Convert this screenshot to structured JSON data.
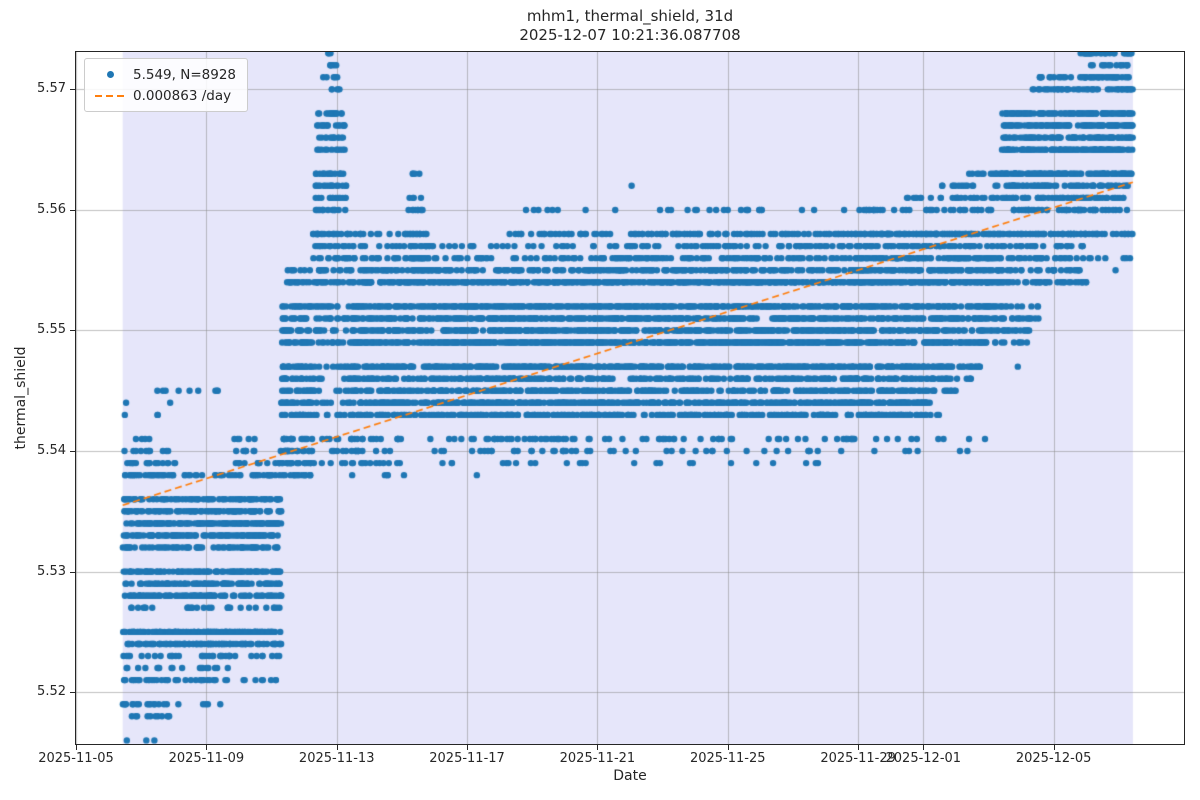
{
  "figure": {
    "title_line1": "mhm1, thermal_shield, 31d",
    "title_line2": "2025-12-07 10:21:36.087708"
  },
  "axes": {
    "xlabel": "Date",
    "ylabel": "thermal_shield"
  },
  "legend": {
    "entries": [
      {
        "marker": "dot",
        "color": "#1f77b4",
        "label": "5.549, N=8928"
      },
      {
        "marker": "dashed-line",
        "color": "#ff7f0e",
        "label": "0.000863 /day"
      }
    ]
  },
  "chart_data": {
    "type": "scatter",
    "title": "mhm1, thermal_shield, 31d",
    "subtitle": "2025-12-07 10:21:36.087708",
    "xlabel": "Date",
    "ylabel": "thermal_shield",
    "series_name": "thermal_shield",
    "mean_value": 5.549,
    "n_points": 8928,
    "window_days": 31,
    "samples_per_day": 288,
    "point_color": "#1f77b4",
    "trend_color": "#ff7f0e",
    "shade_color": "#e6e6fa",
    "grid_color": "rgba(140,140,140,0.55)",
    "x_axis": {
      "origin_date": "2025-11-05",
      "days_span": 34,
      "ticks": [
        {
          "day": 0,
          "label": "2025-11-05"
        },
        {
          "day": 4,
          "label": "2025-11-09"
        },
        {
          "day": 8,
          "label": "2025-11-13"
        },
        {
          "day": 12,
          "label": "2025-11-17"
        },
        {
          "day": 16,
          "label": "2025-11-21"
        },
        {
          "day": 20,
          "label": "2025-11-25"
        },
        {
          "day": 24,
          "label": "2025-11-29"
        },
        {
          "day": 26,
          "label": "2025-12-01"
        },
        {
          "day": 30,
          "label": "2025-12-05"
        }
      ]
    },
    "y_axis": {
      "min": 5.5157,
      "max": 5.5731,
      "ticks": [
        {
          "value": 5.52,
          "label": "5.52"
        },
        {
          "value": 5.53,
          "label": "5.53"
        },
        {
          "value": 5.54,
          "label": "5.54"
        },
        {
          "value": 5.55,
          "label": "5.55"
        },
        {
          "value": 5.56,
          "label": "5.56"
        },
        {
          "value": 5.57,
          "label": "5.57"
        }
      ]
    },
    "shaded_span_days": [
      1.432,
      32.432
    ],
    "trend": {
      "rate_per_day": 0.000863,
      "start": {
        "day": 1.432,
        "value": 5.5355
      },
      "end": {
        "day": 32.432,
        "value": 5.5623
      },
      "dash": [
        7,
        4
      ]
    },
    "quantized_levels": [
      5.516,
      5.518,
      5.519,
      5.521,
      5.522,
      5.523,
      5.524,
      5.525,
      5.527,
      5.528,
      5.529,
      5.53,
      5.532,
      5.533,
      5.534,
      5.535,
      5.536,
      5.538,
      5.539,
      5.54,
      5.541,
      5.543,
      5.544,
      5.545,
      5.546,
      5.547,
      5.549,
      5.55,
      5.551,
      5.552,
      5.554,
      5.555,
      5.556,
      5.557,
      5.558,
      5.56,
      5.561,
      5.562,
      5.563,
      5.565,
      5.566,
      5.567,
      5.568,
      5.57,
      5.571,
      5.572,
      5.573
    ],
    "seed": 42,
    "segments": [
      {
        "t0": 1.432,
        "t1": 3.05,
        "rows": [
          [
            5.516,
            1
          ],
          [
            5.518,
            5
          ],
          [
            5.519,
            7
          ],
          [
            5.521,
            9
          ],
          [
            5.522,
            4
          ],
          [
            5.523,
            5
          ],
          [
            5.524,
            15
          ],
          [
            5.525,
            17
          ],
          [
            5.527,
            3
          ],
          [
            5.528,
            18
          ],
          [
            5.529,
            12
          ],
          [
            5.53,
            16
          ],
          [
            5.532,
            9
          ],
          [
            5.533,
            16
          ],
          [
            5.534,
            18
          ],
          [
            5.535,
            14
          ],
          [
            5.536,
            10
          ],
          [
            5.538,
            12
          ],
          [
            5.539,
            9
          ],
          [
            5.54,
            5
          ],
          [
            5.541,
            2
          ],
          [
            5.543,
            1
          ],
          [
            5.544,
            1
          ],
          [
            5.545,
            1
          ]
        ]
      },
      {
        "t0": 3.05,
        "t1": 4.75,
        "rows": [
          [
            5.519,
            1
          ],
          [
            5.521,
            4
          ],
          [
            5.522,
            2
          ],
          [
            5.523,
            4
          ],
          [
            5.524,
            12
          ],
          [
            5.525,
            13
          ],
          [
            5.527,
            3
          ],
          [
            5.528,
            10
          ],
          [
            5.529,
            9
          ],
          [
            5.53,
            9
          ],
          [
            5.532,
            5
          ],
          [
            5.533,
            9
          ],
          [
            5.534,
            11
          ],
          [
            5.535,
            8
          ],
          [
            5.536,
            5
          ],
          [
            5.538,
            3
          ],
          [
            5.545,
            1
          ]
        ]
      },
      {
        "t0": 4.75,
        "t1": 6.3,
        "rows": [
          [
            5.521,
            2
          ],
          [
            5.523,
            2
          ],
          [
            5.524,
            8
          ],
          [
            5.525,
            12
          ],
          [
            5.527,
            2
          ],
          [
            5.528,
            7
          ],
          [
            5.529,
            8
          ],
          [
            5.53,
            11
          ],
          [
            5.532,
            6
          ],
          [
            5.533,
            10
          ],
          [
            5.534,
            13
          ],
          [
            5.535,
            10
          ],
          [
            5.536,
            7
          ],
          [
            5.538,
            5
          ],
          [
            5.539,
            4
          ],
          [
            5.54,
            2
          ],
          [
            5.541,
            1
          ]
        ]
      },
      {
        "t0": 6.3,
        "t1": 7.25,
        "rows": [
          [
            5.538,
            4
          ],
          [
            5.539,
            6
          ],
          [
            5.54,
            5
          ],
          [
            5.541,
            4
          ],
          [
            5.543,
            5
          ],
          [
            5.544,
            7
          ],
          [
            5.545,
            5
          ],
          [
            5.546,
            5
          ],
          [
            5.547,
            7
          ],
          [
            5.549,
            6
          ],
          [
            5.55,
            5
          ],
          [
            5.551,
            4
          ],
          [
            5.552,
            5
          ],
          [
            5.554,
            4
          ],
          [
            5.555,
            2
          ]
        ]
      },
      {
        "t0": 7.25,
        "t1": 8.4,
        "rows": [
          [
            5.539,
            2
          ],
          [
            5.54,
            2
          ],
          [
            5.541,
            2
          ],
          [
            5.543,
            3
          ],
          [
            5.544,
            3
          ],
          [
            5.545,
            3
          ],
          [
            5.546,
            3
          ],
          [
            5.547,
            4
          ],
          [
            5.549,
            4
          ],
          [
            5.55,
            4
          ],
          [
            5.551,
            5
          ],
          [
            5.552,
            5
          ],
          [
            5.554,
            7
          ],
          [
            5.555,
            5
          ],
          [
            5.556,
            6
          ],
          [
            5.557,
            6
          ],
          [
            5.558,
            8
          ],
          [
            5.56,
            5,
            7.35,
            8.3
          ],
          [
            5.561,
            5,
            7.35,
            8.3
          ],
          [
            5.562,
            6,
            7.35,
            8.3
          ],
          [
            5.563,
            6,
            7.35,
            8.3
          ],
          [
            5.565,
            4,
            7.4,
            8.25
          ],
          [
            5.566,
            5,
            7.4,
            8.25
          ],
          [
            5.567,
            6,
            7.4,
            8.25
          ],
          [
            5.568,
            6,
            7.4,
            8.25
          ],
          [
            5.57,
            2,
            7.55,
            8.1
          ],
          [
            5.571,
            2,
            7.55,
            8.1
          ],
          [
            5.572,
            2,
            7.6,
            8.05
          ],
          [
            5.573,
            1,
            7.7,
            7.95
          ]
        ]
      },
      {
        "t0": 8.4,
        "t1": 10.1,
        "rows": [
          [
            5.538,
            1
          ],
          [
            5.539,
            2
          ],
          [
            5.54,
            2
          ],
          [
            5.541,
            3
          ],
          [
            5.543,
            6
          ],
          [
            5.544,
            9
          ],
          [
            5.545,
            6
          ],
          [
            5.546,
            6
          ],
          [
            5.547,
            9
          ],
          [
            5.549,
            9
          ],
          [
            5.55,
            7
          ],
          [
            5.551,
            6
          ],
          [
            5.552,
            7
          ],
          [
            5.554,
            8
          ],
          [
            5.555,
            5
          ],
          [
            5.556,
            3
          ],
          [
            5.557,
            2
          ],
          [
            5.558,
            2
          ]
        ]
      },
      {
        "t0": 10.1,
        "t1": 10.85,
        "rows": [
          [
            5.543,
            2
          ],
          [
            5.544,
            3
          ],
          [
            5.545,
            2
          ],
          [
            5.546,
            2
          ],
          [
            5.547,
            3
          ],
          [
            5.549,
            3
          ],
          [
            5.55,
            3
          ],
          [
            5.551,
            3
          ],
          [
            5.552,
            3
          ],
          [
            5.554,
            5
          ],
          [
            5.555,
            4
          ],
          [
            5.556,
            5
          ],
          [
            5.557,
            3
          ],
          [
            5.558,
            4
          ],
          [
            5.56,
            2,
            10.2,
            10.7
          ],
          [
            5.561,
            1,
            10.2,
            10.7
          ],
          [
            5.563,
            1,
            10.25,
            10.6
          ]
        ]
      },
      {
        "t0": 10.85,
        "t1": 16,
        "rows": [
          [
            5.539,
            1
          ],
          [
            5.54,
            2
          ],
          [
            5.541,
            3
          ],
          [
            5.543,
            8
          ],
          [
            5.544,
            11
          ],
          [
            5.545,
            8
          ],
          [
            5.546,
            8
          ],
          [
            5.547,
            12
          ],
          [
            5.549,
            14
          ],
          [
            5.55,
            10
          ],
          [
            5.551,
            9
          ],
          [
            5.552,
            10
          ],
          [
            5.554,
            10
          ],
          [
            5.555,
            6
          ],
          [
            5.556,
            3
          ],
          [
            5.557,
            2
          ],
          [
            5.558,
            2,
            13,
            16
          ],
          [
            5.56,
            0.5,
            13.5,
            16
          ]
        ]
      },
      {
        "t0": 16,
        "t1": 24,
        "rows": [
          [
            5.539,
            0.5
          ],
          [
            5.54,
            1
          ],
          [
            5.541,
            2
          ],
          [
            5.543,
            7
          ],
          [
            5.544,
            10
          ],
          [
            5.545,
            7
          ],
          [
            5.546,
            7
          ],
          [
            5.547,
            11
          ],
          [
            5.549,
            13
          ],
          [
            5.55,
            10
          ],
          [
            5.551,
            9
          ],
          [
            5.552,
            10
          ],
          [
            5.554,
            11
          ],
          [
            5.555,
            7
          ],
          [
            5.556,
            5
          ],
          [
            5.557,
            4
          ],
          [
            5.558,
            5
          ],
          [
            5.56,
            1
          ]
        ]
      },
      {
        "t0": 24,
        "t1": 28.4,
        "rows": [
          [
            5.54,
            0.3
          ],
          [
            5.541,
            0.7
          ],
          [
            5.543,
            4,
            24,
            26.5
          ],
          [
            5.544,
            6,
            24,
            26.2
          ],
          [
            5.545,
            4,
            24,
            27
          ],
          [
            5.546,
            4,
            24,
            27.6
          ],
          [
            5.547,
            7,
            24,
            27.8
          ],
          [
            5.549,
            8,
            24,
            28.3
          ],
          [
            5.55,
            6
          ],
          [
            5.551,
            6
          ],
          [
            5.552,
            7
          ],
          [
            5.554,
            10
          ],
          [
            5.555,
            7
          ],
          [
            5.556,
            7
          ],
          [
            5.557,
            5
          ],
          [
            5.558,
            9
          ],
          [
            5.56,
            3
          ],
          [
            5.561,
            2,
            25.5,
            28.4
          ],
          [
            5.562,
            1,
            26.5,
            28.4
          ],
          [
            5.563,
            1,
            27.4,
            28.4
          ]
        ]
      },
      {
        "t0": 28.4,
        "t1": 31,
        "rows": [
          [
            5.549,
            0.7,
            28.4,
            29.6
          ],
          [
            5.55,
            1.5,
            28.4,
            29.6
          ],
          [
            5.551,
            1.5,
            28.4,
            29.6
          ],
          [
            5.552,
            1,
            28.4,
            29.6
          ],
          [
            5.554,
            4
          ],
          [
            5.555,
            3
          ],
          [
            5.556,
            3
          ],
          [
            5.557,
            3
          ],
          [
            5.558,
            6
          ],
          [
            5.56,
            4
          ],
          [
            5.561,
            5
          ],
          [
            5.562,
            5
          ],
          [
            5.563,
            8
          ],
          [
            5.565,
            7
          ],
          [
            5.566,
            7
          ],
          [
            5.567,
            7
          ],
          [
            5.568,
            8
          ],
          [
            5.57,
            3,
            29.3,
            31
          ],
          [
            5.571,
            2,
            29.5,
            31
          ],
          [
            5.573,
            0.5,
            30.8,
            31
          ]
        ]
      },
      {
        "t0": 31,
        "t1": 32.432,
        "rows": [
          [
            5.556,
            1
          ],
          [
            5.558,
            3
          ],
          [
            5.56,
            2
          ],
          [
            5.561,
            3
          ],
          [
            5.562,
            3
          ],
          [
            5.563,
            6
          ],
          [
            5.565,
            7
          ],
          [
            5.566,
            7
          ],
          [
            5.567,
            7
          ],
          [
            5.568,
            8
          ],
          [
            5.57,
            4
          ],
          [
            5.571,
            4
          ],
          [
            5.572,
            2
          ],
          [
            5.573,
            4
          ]
        ]
      }
    ],
    "outlier_points": [
      [
        1.56,
        5.516
      ],
      [
        3.9,
        5.519
      ],
      [
        2.5,
        5.543
      ],
      [
        2.75,
        5.545
      ],
      [
        3.75,
        5.545
      ],
      [
        4.35,
        5.545
      ],
      [
        5.3,
        5.541
      ],
      [
        9.6,
        5.539
      ],
      [
        12.3,
        5.538
      ],
      [
        13.1,
        5.539
      ],
      [
        14.05,
        5.56
      ],
      [
        16.5,
        5.54
      ],
      [
        17.05,
        5.562
      ],
      [
        19.0,
        5.558
      ],
      [
        20.0,
        5.56
      ],
      [
        20.1,
        5.539
      ],
      [
        20.6,
        5.56
      ],
      [
        21.5,
        5.54
      ],
      [
        22.65,
        5.56
      ],
      [
        24.5,
        5.54
      ],
      [
        25.45,
        5.54
      ],
      [
        25.5,
        5.561
      ],
      [
        26.9,
        5.561
      ],
      [
        27.3,
        5.562
      ],
      [
        28.9,
        5.547
      ],
      [
        29.2,
        5.55
      ],
      [
        31.9,
        5.555
      ]
    ]
  }
}
